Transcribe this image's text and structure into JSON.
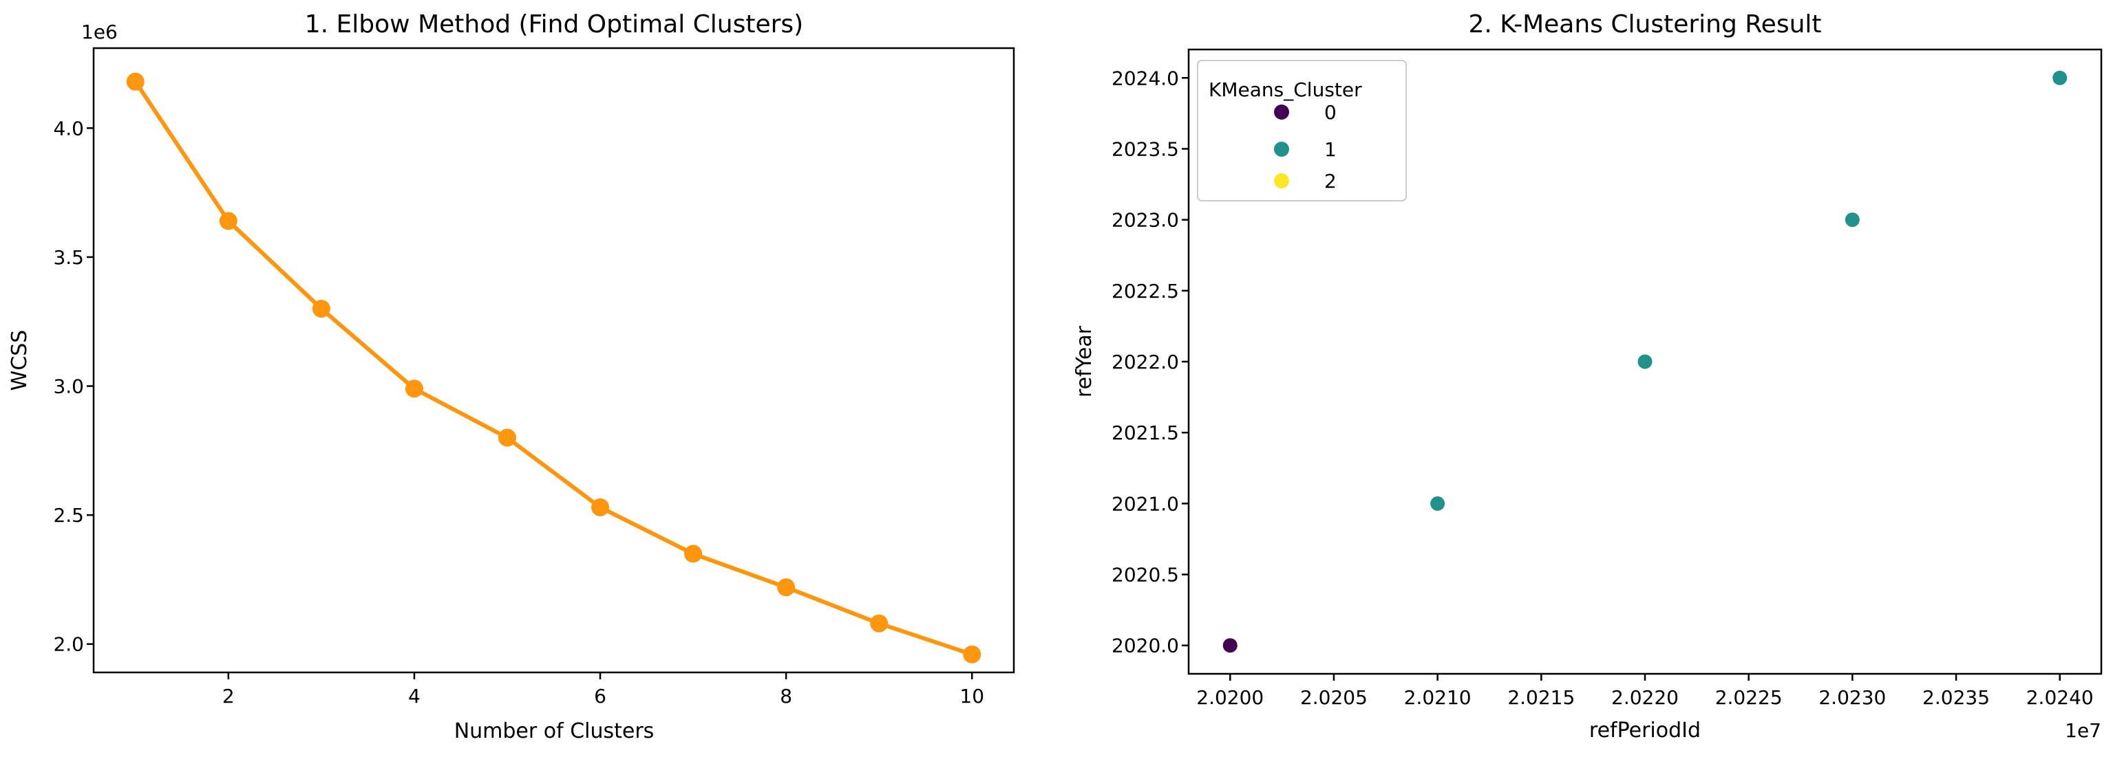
{
  "figure": {
    "background": "#ffffff",
    "text_color": "#000000",
    "spine_color": "#000000"
  },
  "chart_data": [
    {
      "type": "line",
      "title": "1. Elbow Method (Find Optimal Clusters)",
      "xlabel": "Number of Clusters",
      "ylabel": "WCSS",
      "y_offset_label": "1e6",
      "x": [
        1,
        2,
        3,
        4,
        5,
        6,
        7,
        8,
        9,
        10
      ],
      "y": [
        4180000,
        3640000,
        3300000,
        2990000,
        2800000,
        2530000,
        2350000,
        2220000,
        2080000,
        1960000
      ],
      "line_color": "#ff960d",
      "marker": "o",
      "xticks": [
        2,
        4,
        6,
        8,
        10
      ],
      "xtick_labels": [
        "2",
        "4",
        "6",
        "8",
        "10"
      ],
      "yticks": [
        2000000,
        2500000,
        3000000,
        3500000,
        4000000
      ],
      "ytick_labels": [
        "2.0",
        "2.5",
        "3.0",
        "3.5",
        "4.0"
      ],
      "xlim": [
        0.55,
        10.45
      ],
      "ylim": [
        1890000,
        4310000
      ],
      "grid": false,
      "legend": null
    },
    {
      "type": "scatter",
      "title": "2. K-Means Clustering Result",
      "xlabel": "refPeriodId",
      "ylabel": "refYear",
      "x_offset_label": "1e7",
      "points": [
        {
          "x": 20200000,
          "y": 2020.0,
          "cluster": "0"
        },
        {
          "x": 20210000,
          "y": 2021.0,
          "cluster": "1"
        },
        {
          "x": 20220000,
          "y": 2022.0,
          "cluster": "1"
        },
        {
          "x": 20230000,
          "y": 2023.0,
          "cluster": "1"
        },
        {
          "x": 20240000,
          "y": 2024.0,
          "cluster": "1"
        }
      ],
      "cluster_colors": {
        "0": "#440154",
        "1": "#21918c",
        "2": "#fde725"
      },
      "legend": {
        "title": "KMeans_Cluster",
        "position": "upper left",
        "entries": [
          {
            "label": "0",
            "color": "#440154"
          },
          {
            "label": "1",
            "color": "#21918c"
          },
          {
            "label": "2",
            "color": "#fde725"
          }
        ]
      },
      "xticks": [
        20200000,
        20205000,
        20210000,
        20215000,
        20220000,
        20225000,
        20230000,
        20235000,
        20240000
      ],
      "xtick_labels": [
        "2.0200",
        "2.0205",
        "2.0210",
        "2.0215",
        "2.0220",
        "2.0225",
        "2.0230",
        "2.0235",
        "2.0240"
      ],
      "yticks": [
        2020.0,
        2020.5,
        2021.0,
        2021.5,
        2022.0,
        2022.5,
        2023.0,
        2023.5,
        2024.0
      ],
      "ytick_labels": [
        "2020.0",
        "2020.5",
        "2021.0",
        "2021.5",
        "2022.0",
        "2022.5",
        "2023.0",
        "2023.5",
        "2024.0"
      ],
      "xlim": [
        20198000,
        20242000
      ],
      "ylim": [
        2019.8,
        2024.2
      ],
      "grid": false
    }
  ]
}
